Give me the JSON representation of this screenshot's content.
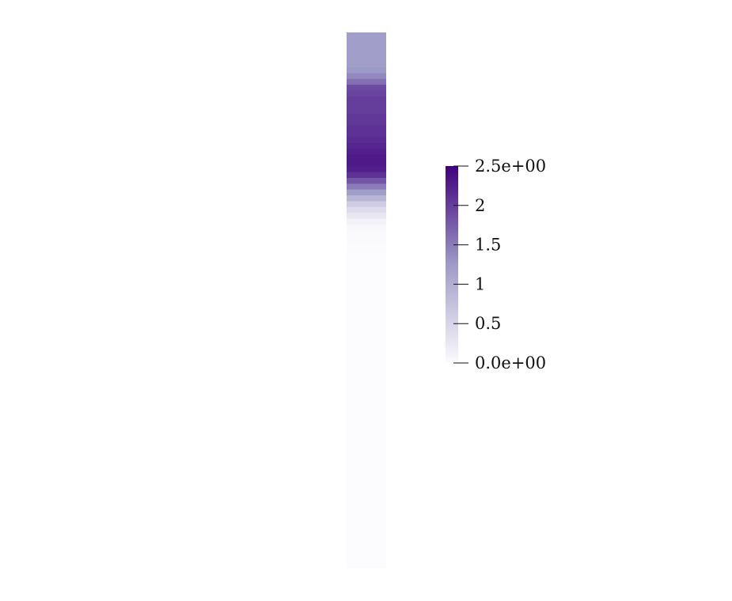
{
  "chart_data": {
    "type": "heatmap",
    "title": "",
    "colormap": "Purples",
    "colors": {
      "min": "#fcfbfd",
      "mid": "#9e9ac8",
      "max": "#3f007d"
    },
    "colorbar": {
      "range": [
        0,
        2.5
      ],
      "ticks": [
        {
          "value": 2.5,
          "label": "2.5e+00"
        },
        {
          "value": 2.0,
          "label": "2"
        },
        {
          "value": 1.5,
          "label": "1.5"
        },
        {
          "value": 1.0,
          "label": "1"
        },
        {
          "value": 0.5,
          "label": "0.5"
        },
        {
          "value": 0.0,
          "label": "0.0e+00"
        }
      ]
    },
    "column_values": [
      1.2,
      1.2,
      1.2,
      1.2,
      1.2,
      1.2,
      1.25,
      1.4,
      1.6,
      1.9,
      1.95,
      2.0,
      2.0,
      2.0,
      2.05,
      2.05,
      2.1,
      2.1,
      2.15,
      2.2,
      2.25,
      2.3,
      2.3,
      2.25,
      2.1,
      1.8,
      1.5,
      1.2,
      0.9,
      0.6,
      0.4,
      0.25,
      0.12,
      0.05,
      0.03,
      0.02,
      0.01,
      0.01,
      0.0,
      0.0,
      0.0,
      0.0,
      0.0,
      0.0,
      0.0,
      0.0,
      0.0,
      0.0,
      0.0,
      0.0,
      0.0,
      0.0,
      0.0,
      0.0,
      0.0,
      0.0,
      0.0,
      0.0,
      0.0,
      0.0,
      0.0,
      0.0,
      0.0,
      0.0,
      0.0,
      0.0,
      0.0,
      0.0,
      0.0,
      0.0,
      0.0,
      0.0,
      0.0,
      0.0,
      0.0,
      0.0,
      0.0,
      0.0,
      0.0,
      0.0,
      0.0,
      0.0,
      0.0,
      0.0,
      0.0,
      0.0,
      0.0,
      0.0,
      0.0,
      0.0,
      0.0,
      0.0
    ]
  }
}
